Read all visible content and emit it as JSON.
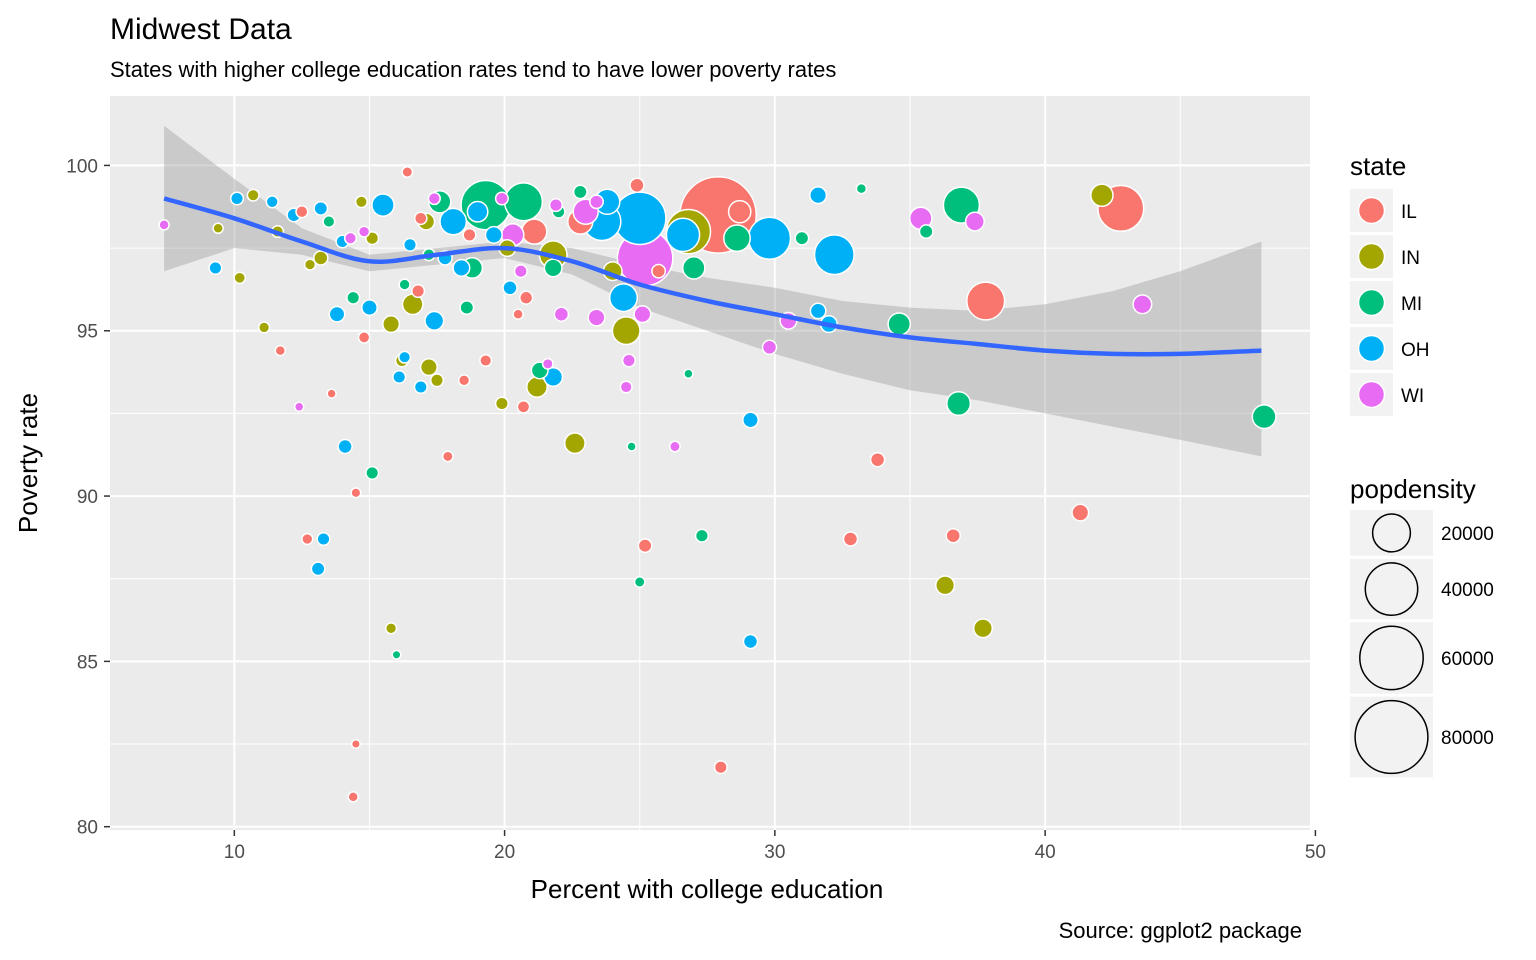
{
  "chart_data": {
    "type": "scatter",
    "title": "Midwest Data",
    "subtitle": "States with higher college education rates tend to have lower poverty rates",
    "caption": "Source: ggplot2 package",
    "xlabel": "Percent with college education",
    "ylabel": "Poverty rate",
    "xlim": [
      5.4,
      49.8
    ],
    "ylim": [
      79.9,
      102.1
    ],
    "x_ticks": [
      10,
      20,
      30,
      40,
      50
    ],
    "y_ticks": [
      80,
      85,
      90,
      95,
      100
    ],
    "grid": true,
    "legend_position": "right",
    "color_legend": {
      "title": "state",
      "entries": [
        {
          "label": "IL",
          "color": "#F8766D"
        },
        {
          "label": "IN",
          "color": "#A3A500"
        },
        {
          "label": "MI",
          "color": "#00BF7D"
        },
        {
          "label": "OH",
          "color": "#00B0F6"
        },
        {
          "label": "WI",
          "color": "#E76BF3"
        }
      ]
    },
    "size_legend": {
      "title": "popdensity",
      "breaks": [
        20000,
        40000,
        60000,
        80000
      ]
    },
    "smooth": {
      "color": "#3366FF",
      "x": [
        7.4,
        10,
        12.5,
        15,
        17.5,
        20,
        22.5,
        25,
        27.5,
        30,
        32.5,
        35,
        37.5,
        40,
        42.5,
        45,
        48
      ],
      "y": [
        99.0,
        98.4,
        97.7,
        97.1,
        97.3,
        97.5,
        97.1,
        96.4,
        95.9,
        95.5,
        95.1,
        94.8,
        94.6,
        94.4,
        94.3,
        94.3,
        94.4
      ],
      "ci_low": [
        96.8,
        97.5,
        97.3,
        96.8,
        97.0,
        97.2,
        96.7,
        95.7,
        95.0,
        94.3,
        93.7,
        93.2,
        92.9,
        92.5,
        92.1,
        91.7,
        91.2
      ],
      "ci_high": [
        101.2,
        99.6,
        98.1,
        97.3,
        97.5,
        97.7,
        97.5,
        97.0,
        96.6,
        96.3,
        95.9,
        95.7,
        95.6,
        95.8,
        96.2,
        96.8,
        97.7
      ]
    },
    "points": [
      {
        "x": 27.9,
        "y": 98.5,
        "state": "IL",
        "popdensity": 88000
      },
      {
        "x": 42.8,
        "y": 98.7,
        "state": "IL",
        "popdensity": 30000
      },
      {
        "x": 37.8,
        "y": 95.9,
        "state": "IL",
        "popdensity": 20000
      },
      {
        "x": 28.7,
        "y": 98.6,
        "state": "IL",
        "popdensity": 6000
      },
      {
        "x": 22.8,
        "y": 98.3,
        "state": "IL",
        "popdensity": 8000
      },
      {
        "x": 21.1,
        "y": 98.0,
        "state": "IL",
        "popdensity": 8000
      },
      {
        "x": 24.9,
        "y": 99.4,
        "state": "IL",
        "popdensity": 2000
      },
      {
        "x": 41.3,
        "y": 89.5,
        "state": "IL",
        "popdensity": 3000
      },
      {
        "x": 33.8,
        "y": 91.1,
        "state": "IL",
        "popdensity": 2000
      },
      {
        "x": 32.8,
        "y": 88.7,
        "state": "IL",
        "popdensity": 2000
      },
      {
        "x": 36.6,
        "y": 88.8,
        "state": "IL",
        "popdensity": 2000
      },
      {
        "x": 25.2,
        "y": 88.5,
        "state": "IL",
        "popdensity": 1800
      },
      {
        "x": 28.0,
        "y": 81.8,
        "state": "IL",
        "popdensity": 1500
      },
      {
        "x": 12.7,
        "y": 88.7,
        "state": "IL",
        "popdensity": 1000
      },
      {
        "x": 14.4,
        "y": 80.9,
        "state": "IL",
        "popdensity": 800
      },
      {
        "x": 17.9,
        "y": 91.2,
        "state": "IL",
        "popdensity": 900
      },
      {
        "x": 19.3,
        "y": 94.1,
        "state": "IL",
        "popdensity": 1200
      },
      {
        "x": 20.7,
        "y": 92.7,
        "state": "IL",
        "popdensity": 1400
      },
      {
        "x": 14.5,
        "y": 90.1,
        "state": "IL",
        "popdensity": 700
      },
      {
        "x": 11.7,
        "y": 94.4,
        "state": "IL",
        "popdensity": 800
      },
      {
        "x": 18.5,
        "y": 93.5,
        "state": "IL",
        "popdensity": 1000
      },
      {
        "x": 20.5,
        "y": 95.5,
        "state": "IL",
        "popdensity": 800
      },
      {
        "x": 16.4,
        "y": 99.8,
        "state": "IL",
        "popdensity": 900
      },
      {
        "x": 14.8,
        "y": 94.8,
        "state": "IL",
        "popdensity": 1100
      },
      {
        "x": 13.6,
        "y": 93.1,
        "state": "IL",
        "popdensity": 600
      },
      {
        "x": 14.5,
        "y": 82.5,
        "state": "IL",
        "popdensity": 500
      },
      {
        "x": 16.8,
        "y": 96.2,
        "state": "IL",
        "popdensity": 1500
      },
      {
        "x": 20.8,
        "y": 96.0,
        "state": "IL",
        "popdensity": 1600
      },
      {
        "x": 25.7,
        "y": 96.8,
        "state": "IL",
        "popdensity": 1800
      },
      {
        "x": 12.5,
        "y": 98.6,
        "state": "IL",
        "popdensity": 1300
      },
      {
        "x": 16.9,
        "y": 98.4,
        "state": "IL",
        "popdensity": 1400
      },
      {
        "x": 18.7,
        "y": 97.9,
        "state": "IL",
        "popdensity": 1500
      },
      {
        "x": 42.1,
        "y": 99.1,
        "state": "IN",
        "popdensity": 6000
      },
      {
        "x": 36.3,
        "y": 87.3,
        "state": "IN",
        "popdensity": 4000
      },
      {
        "x": 37.7,
        "y": 86.0,
        "state": "IN",
        "popdensity": 4000
      },
      {
        "x": 24.5,
        "y": 95.0,
        "state": "IN",
        "popdensity": 10000
      },
      {
        "x": 22.6,
        "y": 91.6,
        "state": "IN",
        "popdensity": 5000
      },
      {
        "x": 21.2,
        "y": 93.3,
        "state": "IN",
        "popdensity": 5000
      },
      {
        "x": 26.8,
        "y": 98.0,
        "state": "IN",
        "popdensity": 28000
      },
      {
        "x": 21.8,
        "y": 97.3,
        "state": "IN",
        "popdensity": 10000
      },
      {
        "x": 16.6,
        "y": 95.8,
        "state": "IN",
        "popdensity": 5000
      },
      {
        "x": 15.8,
        "y": 95.2,
        "state": "IN",
        "popdensity": 3000
      },
      {
        "x": 17.2,
        "y": 93.9,
        "state": "IN",
        "popdensity": 3000
      },
      {
        "x": 17.5,
        "y": 93.5,
        "state": "IN",
        "popdensity": 1500
      },
      {
        "x": 19.9,
        "y": 92.8,
        "state": "IN",
        "popdensity": 1500
      },
      {
        "x": 15.8,
        "y": 86.0,
        "state": "IN",
        "popdensity": 1000
      },
      {
        "x": 10.2,
        "y": 96.6,
        "state": "IN",
        "popdensity": 1100
      },
      {
        "x": 11.1,
        "y": 95.1,
        "state": "IN",
        "popdensity": 1000
      },
      {
        "x": 12.8,
        "y": 97.0,
        "state": "IN",
        "popdensity": 1000
      },
      {
        "x": 16.2,
        "y": 94.1,
        "state": "IN",
        "popdensity": 1500
      },
      {
        "x": 13.2,
        "y": 97.2,
        "state": "IN",
        "popdensity": 2000
      },
      {
        "x": 17.1,
        "y": 98.3,
        "state": "IN",
        "popdensity": 3000
      },
      {
        "x": 20.1,
        "y": 97.5,
        "state": "IN",
        "popdensity": 3000
      },
      {
        "x": 15.1,
        "y": 97.8,
        "state": "IN",
        "popdensity": 1500
      },
      {
        "x": 11.6,
        "y": 98.0,
        "state": "IN",
        "popdensity": 1200
      },
      {
        "x": 10.7,
        "y": 99.1,
        "state": "IN",
        "popdensity": 1200
      },
      {
        "x": 9.4,
        "y": 98.1,
        "state": "IN",
        "popdensity": 800
      },
      {
        "x": 24.0,
        "y": 96.8,
        "state": "IN",
        "popdensity": 4000
      },
      {
        "x": 14.7,
        "y": 98.9,
        "state": "IN",
        "popdensity": 1200
      },
      {
        "x": 19.3,
        "y": 98.8,
        "state": "MI",
        "popdensity": 35000
      },
      {
        "x": 20.7,
        "y": 98.9,
        "state": "MI",
        "popdensity": 20000
      },
      {
        "x": 36.9,
        "y": 98.8,
        "state": "MI",
        "popdensity": 18000
      },
      {
        "x": 48.1,
        "y": 92.4,
        "state": "MI",
        "popdensity": 7000
      },
      {
        "x": 36.8,
        "y": 92.8,
        "state": "MI",
        "popdensity": 7000
      },
      {
        "x": 34.6,
        "y": 95.2,
        "state": "MI",
        "popdensity": 6000
      },
      {
        "x": 28.6,
        "y": 97.8,
        "state": "MI",
        "popdensity": 9000
      },
      {
        "x": 27.0,
        "y": 96.9,
        "state": "MI",
        "popdensity": 6000
      },
      {
        "x": 18.8,
        "y": 96.9,
        "state": "MI",
        "popdensity": 5000
      },
      {
        "x": 17.6,
        "y": 98.9,
        "state": "MI",
        "popdensity": 6000
      },
      {
        "x": 21.3,
        "y": 93.8,
        "state": "MI",
        "popdensity": 3000
      },
      {
        "x": 15.1,
        "y": 90.7,
        "state": "MI",
        "popdensity": 1500
      },
      {
        "x": 27.3,
        "y": 88.8,
        "state": "MI",
        "popdensity": 1500
      },
      {
        "x": 35.6,
        "y": 98.0,
        "state": "MI",
        "popdensity": 1800
      },
      {
        "x": 31.0,
        "y": 97.8,
        "state": "MI",
        "popdensity": 1800
      },
      {
        "x": 21.8,
        "y": 96.9,
        "state": "MI",
        "popdensity": 3500
      },
      {
        "x": 22.8,
        "y": 99.2,
        "state": "MI",
        "popdensity": 1800
      },
      {
        "x": 25.0,
        "y": 87.4,
        "state": "MI",
        "popdensity": 900
      },
      {
        "x": 16.0,
        "y": 85.2,
        "state": "MI",
        "popdensity": 500
      },
      {
        "x": 14.4,
        "y": 96.0,
        "state": "MI",
        "popdensity": 1500
      },
      {
        "x": 17.2,
        "y": 97.3,
        "state": "MI",
        "popdensity": 1300
      },
      {
        "x": 18.6,
        "y": 95.7,
        "state": "MI",
        "popdensity": 1800
      },
      {
        "x": 24.7,
        "y": 91.5,
        "state": "MI",
        "popdensity": 600
      },
      {
        "x": 26.8,
        "y": 93.7,
        "state": "MI",
        "popdensity": 600
      },
      {
        "x": 33.2,
        "y": 99.3,
        "state": "MI",
        "popdensity": 800
      },
      {
        "x": 13.5,
        "y": 98.3,
        "state": "MI",
        "popdensity": 1200
      },
      {
        "x": 22.0,
        "y": 98.6,
        "state": "MI",
        "popdensity": 1500
      },
      {
        "x": 16.3,
        "y": 96.4,
        "state": "MI",
        "popdensity": 1000
      },
      {
        "x": 29.8,
        "y": 97.8,
        "state": "OH",
        "popdensity": 25000
      },
      {
        "x": 32.2,
        "y": 97.3,
        "state": "OH",
        "popdensity": 22000
      },
      {
        "x": 25.0,
        "y": 98.4,
        "state": "OH",
        "popdensity": 40000
      },
      {
        "x": 23.6,
        "y": 98.3,
        "state": "OH",
        "popdensity": 20000
      },
      {
        "x": 26.6,
        "y": 97.9,
        "state": "OH",
        "popdensity": 15000
      },
      {
        "x": 24.4,
        "y": 96.0,
        "state": "OH",
        "popdensity": 10000
      },
      {
        "x": 23.8,
        "y": 98.9,
        "state": "OH",
        "popdensity": 8000
      },
      {
        "x": 18.1,
        "y": 98.3,
        "state": "OH",
        "popdensity": 9000
      },
      {
        "x": 15.5,
        "y": 98.8,
        "state": "OH",
        "popdensity": 6000
      },
      {
        "x": 19.0,
        "y": 98.6,
        "state": "OH",
        "popdensity": 5000
      },
      {
        "x": 21.8,
        "y": 93.6,
        "state": "OH",
        "popdensity": 4000
      },
      {
        "x": 17.4,
        "y": 95.3,
        "state": "OH",
        "popdensity": 4000
      },
      {
        "x": 31.6,
        "y": 99.1,
        "state": "OH",
        "popdensity": 3000
      },
      {
        "x": 32.0,
        "y": 95.2,
        "state": "OH",
        "popdensity": 3000
      },
      {
        "x": 31.6,
        "y": 95.6,
        "state": "OH",
        "popdensity": 2500
      },
      {
        "x": 29.1,
        "y": 92.3,
        "state": "OH",
        "popdensity": 2500
      },
      {
        "x": 29.1,
        "y": 85.6,
        "state": "OH",
        "popdensity": 2000
      },
      {
        "x": 14.1,
        "y": 91.5,
        "state": "OH",
        "popdensity": 2000
      },
      {
        "x": 13.3,
        "y": 88.7,
        "state": "OH",
        "popdensity": 1500
      },
      {
        "x": 13.1,
        "y": 87.8,
        "state": "OH",
        "popdensity": 1800
      },
      {
        "x": 9.3,
        "y": 96.9,
        "state": "OH",
        "popdensity": 1500
      },
      {
        "x": 10.1,
        "y": 99.0,
        "state": "OH",
        "popdensity": 1500
      },
      {
        "x": 16.1,
        "y": 93.6,
        "state": "OH",
        "popdensity": 1500
      },
      {
        "x": 16.9,
        "y": 93.3,
        "state": "OH",
        "popdensity": 1500
      },
      {
        "x": 16.3,
        "y": 94.2,
        "state": "OH",
        "popdensity": 1200
      },
      {
        "x": 13.8,
        "y": 95.5,
        "state": "OH",
        "popdensity": 2500
      },
      {
        "x": 15.0,
        "y": 95.7,
        "state": "OH",
        "popdensity": 2500
      },
      {
        "x": 18.4,
        "y": 96.9,
        "state": "OH",
        "popdensity": 3000
      },
      {
        "x": 19.6,
        "y": 97.9,
        "state": "OH",
        "popdensity": 3000
      },
      {
        "x": 12.2,
        "y": 98.5,
        "state": "OH",
        "popdensity": 1800
      },
      {
        "x": 13.2,
        "y": 98.7,
        "state": "OH",
        "popdensity": 1800
      },
      {
        "x": 14.0,
        "y": 97.7,
        "state": "OH",
        "popdensity": 1500
      },
      {
        "x": 16.5,
        "y": 97.6,
        "state": "OH",
        "popdensity": 1500
      },
      {
        "x": 17.8,
        "y": 97.2,
        "state": "OH",
        "popdensity": 2000
      },
      {
        "x": 20.2,
        "y": 96.3,
        "state": "OH",
        "popdensity": 2000
      },
      {
        "x": 11.4,
        "y": 98.9,
        "state": "OH",
        "popdensity": 1300
      },
      {
        "x": 25.2,
        "y": 97.2,
        "state": "WI",
        "popdensity": 45000
      },
      {
        "x": 20.3,
        "y": 97.9,
        "state": "WI",
        "popdensity": 6000
      },
      {
        "x": 23.0,
        "y": 98.6,
        "state": "WI",
        "popdensity": 8000
      },
      {
        "x": 35.4,
        "y": 98.4,
        "state": "WI",
        "popdensity": 6000
      },
      {
        "x": 37.4,
        "y": 98.3,
        "state": "WI",
        "popdensity": 4000
      },
      {
        "x": 43.6,
        "y": 95.8,
        "state": "WI",
        "popdensity": 4000
      },
      {
        "x": 30.5,
        "y": 95.3,
        "state": "WI",
        "popdensity": 3000
      },
      {
        "x": 29.8,
        "y": 94.5,
        "state": "WI",
        "popdensity": 2000
      },
      {
        "x": 25.1,
        "y": 95.5,
        "state": "WI",
        "popdensity": 3000
      },
      {
        "x": 23.4,
        "y": 95.4,
        "state": "WI",
        "popdensity": 3000
      },
      {
        "x": 22.1,
        "y": 95.5,
        "state": "WI",
        "popdensity": 2000
      },
      {
        "x": 24.6,
        "y": 94.1,
        "state": "WI",
        "popdensity": 1500
      },
      {
        "x": 24.5,
        "y": 93.3,
        "state": "WI",
        "popdensity": 1200
      },
      {
        "x": 26.3,
        "y": 91.5,
        "state": "WI",
        "popdensity": 900
      },
      {
        "x": 21.6,
        "y": 94.0,
        "state": "WI",
        "popdensity": 900
      },
      {
        "x": 12.4,
        "y": 92.7,
        "state": "WI",
        "popdensity": 600
      },
      {
        "x": 20.6,
        "y": 96.8,
        "state": "WI",
        "popdensity": 1500
      },
      {
        "x": 19.9,
        "y": 99.0,
        "state": "WI",
        "popdensity": 1500
      },
      {
        "x": 21.9,
        "y": 98.8,
        "state": "WI",
        "popdensity": 1500
      },
      {
        "x": 14.3,
        "y": 97.8,
        "state": "WI",
        "popdensity": 1200
      },
      {
        "x": 14.8,
        "y": 98.0,
        "state": "WI",
        "popdensity": 1000
      },
      {
        "x": 7.4,
        "y": 98.2,
        "state": "WI",
        "popdensity": 800
      },
      {
        "x": 17.4,
        "y": 99.0,
        "state": "WI",
        "popdensity": 1300
      },
      {
        "x": 23.4,
        "y": 98.9,
        "state": "WI",
        "popdensity": 1800
      }
    ]
  }
}
